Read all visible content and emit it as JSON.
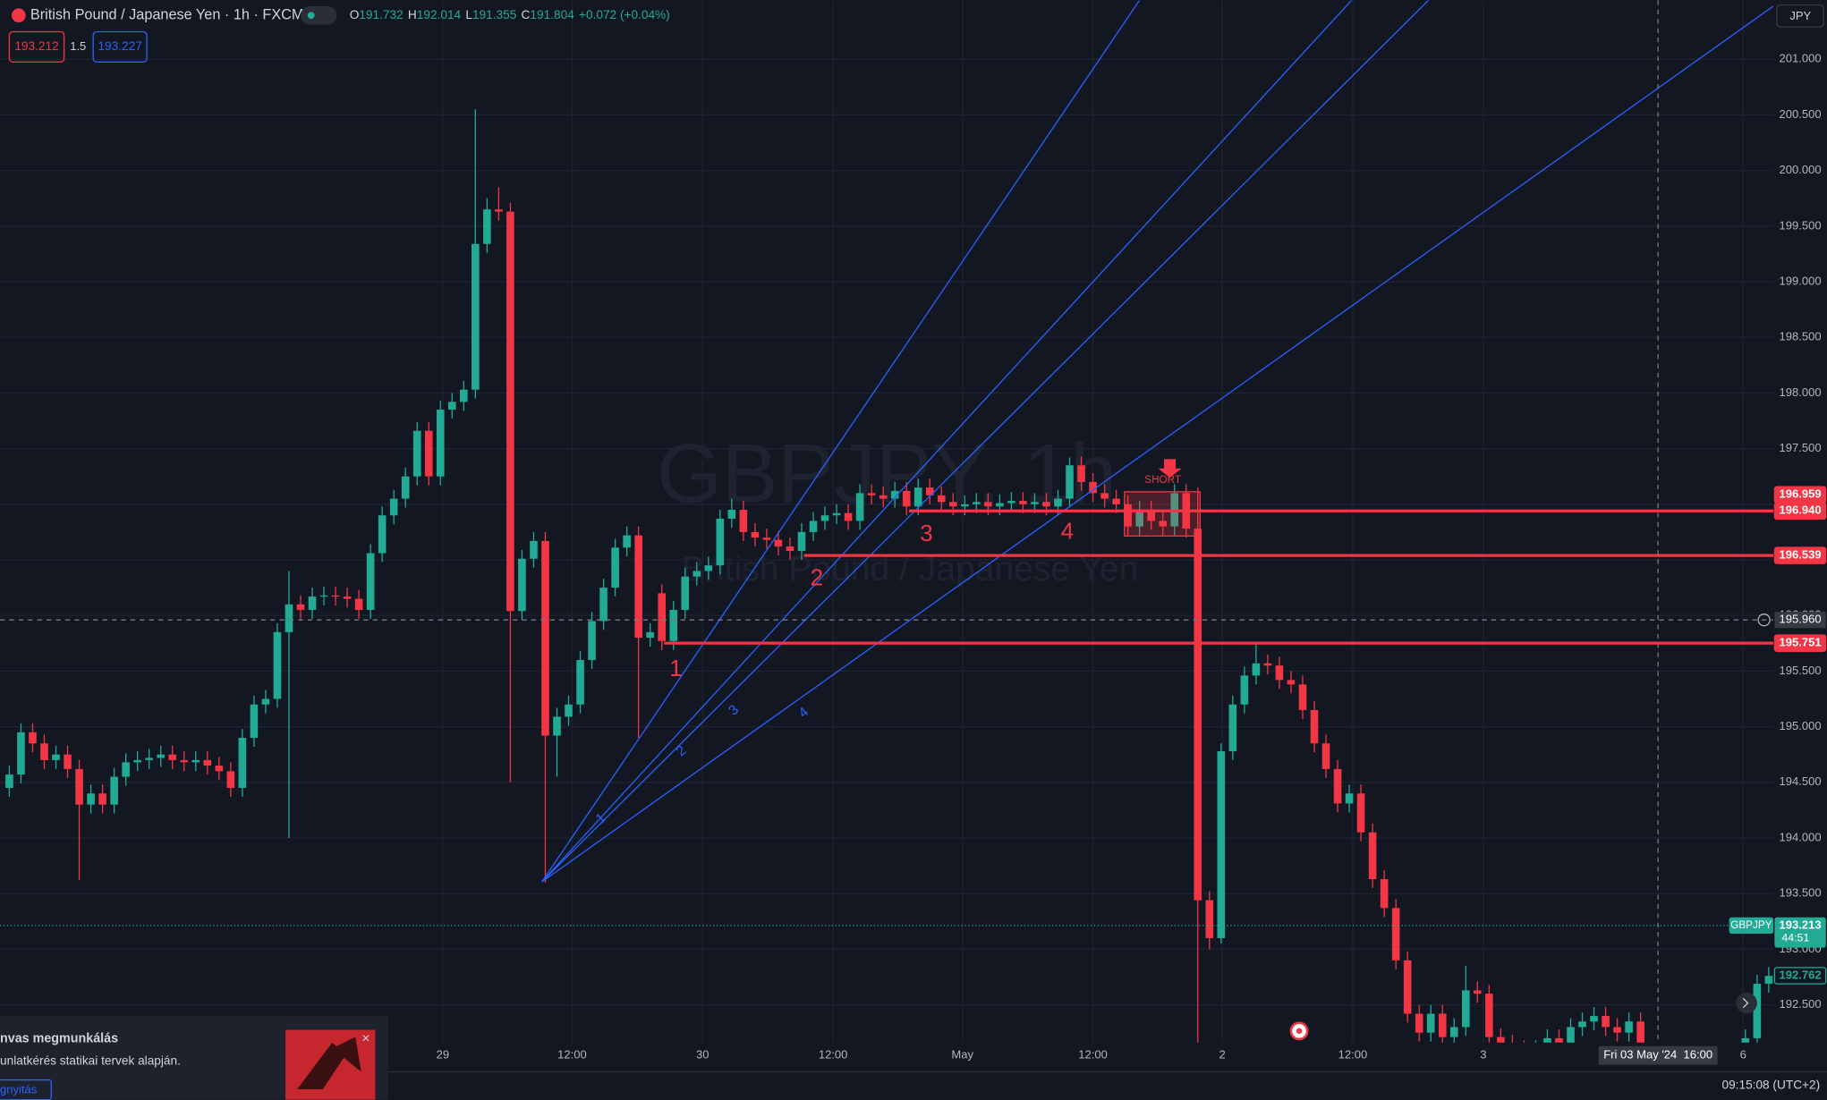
{
  "header": {
    "symbol": "British Pound / Japanese Yen · 1h · FXCM",
    "legend": [
      {
        "key": "O",
        "value": "191.732"
      },
      {
        "key": "H",
        "value": "192.014"
      },
      {
        "key": "L",
        "value": "191.355"
      },
      {
        "key": "C",
        "value": "191.804"
      }
    ],
    "change": "+0.072 (+0.04%)"
  },
  "trade_panel": {
    "sell": "193.212",
    "spread": "1.5",
    "buy": "193.227"
  },
  "currency": "JPY",
  "chart_data": {
    "type": "candlestick",
    "title": "GBPJPY, 1h",
    "subtitle": "British Pound / Japanese Yen",
    "up_color": "#22ab94",
    "down_color": "#f23645",
    "candles": {
      "open": [
        194.45,
        194.57,
        194.95,
        194.85,
        194.7,
        194.75,
        194.62,
        194.3,
        194.4,
        194.3,
        194.55,
        194.68,
        194.7,
        194.72,
        194.75,
        194.7,
        194.68,
        194.7,
        194.65,
        194.6,
        194.45,
        194.9,
        195.2,
        195.25,
        195.85,
        196.1,
        196.05,
        196.17,
        196.18,
        196.17,
        196.15,
        196.05,
        196.56,
        196.9,
        197.05,
        197.25,
        197.66,
        197.25,
        197.85,
        197.92,
        198.03,
        199.34,
        199.65,
        199.63,
        196.04,
        196.51,
        196.67,
        194.92,
        195.09,
        195.2,
        195.6,
        195.95,
        196.25,
        196.61,
        196.72,
        195.8,
        196.2,
        195.77,
        196.05,
        196.35,
        196.4,
        196.45,
        196.87,
        196.95,
        196.75,
        196.7,
        196.68,
        196.62,
        196.58,
        196.75,
        196.85,
        196.9,
        196.92,
        196.85,
        197.1,
        197.08,
        197.05,
        197.12,
        196.98,
        197.15,
        197.08,
        197.02,
        196.98,
        197.0,
        197.02,
        196.98,
        197.01,
        197.03,
        197.0,
        197.02,
        196.98,
        197.05,
        197.35,
        197.2,
        197.1,
        197.05,
        197.0,
        196.8,
        196.95,
        196.85,
        196.8,
        197.1,
        196.78,
        193.44,
        193.1,
        194.78,
        195.2,
        195.46,
        195.57,
        195.55,
        195.42,
        195.38,
        195.15,
        194.85,
        194.62,
        194.31,
        194.4,
        194.05,
        193.63,
        193.37,
        192.9,
        192.42,
        192.25,
        192.42,
        192.21,
        192.3,
        192.63,
        192.6,
        192.21,
        192.15,
        192.1,
        192.05,
        192.1,
        192.2,
        192.15,
        192.3,
        192.35,
        192.4,
        192.3,
        192.25,
        192.35,
        null,
        null,
        null,
        null,
        null,
        null,
        null,
        null,
        192.1,
        192.2,
        192.69
      ],
      "high": [
        194.65,
        195.03,
        195.03,
        194.93,
        194.83,
        194.83,
        194.7,
        194.48,
        194.48,
        194.63,
        194.76,
        194.78,
        194.8,
        194.83,
        194.83,
        194.78,
        194.78,
        194.78,
        194.73,
        194.68,
        194.98,
        195.28,
        195.33,
        195.93,
        196.4,
        196.18,
        196.25,
        196.26,
        196.26,
        196.25,
        196.23,
        196.64,
        196.98,
        197.13,
        197.33,
        197.74,
        197.74,
        197.93,
        198.0,
        198.11,
        200.55,
        199.75,
        199.85,
        199.71,
        196.59,
        196.75,
        196.75,
        195.17,
        195.28,
        195.68,
        196.03,
        196.33,
        196.69,
        196.8,
        196.8,
        195.93,
        196.28,
        196.13,
        196.43,
        196.48,
        196.53,
        196.95,
        197.05,
        197.03,
        196.83,
        196.78,
        196.76,
        196.7,
        196.83,
        196.93,
        196.98,
        197.0,
        197.0,
        197.18,
        197.18,
        197.16,
        197.2,
        197.2,
        197.23,
        197.23,
        197.16,
        197.1,
        197.08,
        197.1,
        197.1,
        197.09,
        197.11,
        197.11,
        197.1,
        197.1,
        197.13,
        197.42,
        197.43,
        197.28,
        197.18,
        197.13,
        197.08,
        197.03,
        197.03,
        196.93,
        197.18,
        197.18,
        197.15,
        193.52,
        194.85,
        195.28,
        195.54,
        195.75,
        195.65,
        195.63,
        195.5,
        195.46,
        195.23,
        194.93,
        194.7,
        194.48,
        194.48,
        194.13,
        193.71,
        193.45,
        192.98,
        192.5,
        192.5,
        192.5,
        192.38,
        192.85,
        192.71,
        192.68,
        192.29,
        192.23,
        192.18,
        192.18,
        192.28,
        192.28,
        192.38,
        192.43,
        192.48,
        192.48,
        192.38,
        192.43,
        192.43,
        null,
        null,
        null,
        null,
        null,
        null,
        null,
        null,
        192.28,
        192.77,
        192.84
      ],
      "low": [
        194.37,
        194.49,
        194.77,
        194.62,
        194.62,
        194.54,
        193.62,
        194.22,
        194.22,
        194.22,
        194.47,
        194.6,
        194.62,
        194.64,
        194.62,
        194.6,
        194.6,
        194.57,
        194.52,
        194.37,
        194.37,
        194.82,
        195.12,
        195.17,
        194.0,
        195.97,
        195.97,
        196.09,
        196.09,
        196.07,
        195.97,
        195.97,
        196.48,
        196.82,
        196.97,
        197.17,
        197.17,
        197.17,
        197.77,
        197.84,
        197.95,
        199.26,
        199.55,
        194.5,
        195.96,
        196.43,
        193.6,
        194.55,
        195.01,
        195.12,
        195.52,
        195.87,
        196.17,
        196.53,
        194.9,
        195.72,
        195.69,
        195.69,
        195.97,
        196.27,
        196.32,
        196.37,
        196.79,
        196.67,
        196.62,
        196.6,
        196.54,
        196.5,
        196.5,
        196.67,
        196.77,
        196.82,
        196.77,
        196.77,
        197.0,
        196.97,
        196.97,
        196.9,
        196.9,
        197.0,
        196.94,
        196.9,
        196.9,
        196.92,
        196.9,
        196.9,
        196.93,
        196.92,
        196.92,
        196.9,
        196.9,
        196.97,
        197.12,
        197.02,
        196.97,
        196.92,
        196.72,
        196.72,
        196.77,
        196.72,
        196.72,
        196.7,
        192.1,
        193.0,
        193.05,
        194.7,
        195.12,
        195.38,
        195.47,
        195.34,
        195.3,
        195.07,
        194.77,
        194.54,
        194.23,
        194.23,
        193.97,
        193.55,
        193.29,
        192.82,
        192.34,
        192.17,
        192.17,
        192.13,
        192.13,
        192.22,
        192.52,
        192.13,
        192.07,
        192.02,
        191.97,
        191.97,
        192.02,
        192.07,
        192.07,
        192.22,
        192.27,
        192.22,
        192.17,
        192.17,
        192.02,
        null,
        null,
        null,
        null,
        null,
        null,
        null,
        null,
        192.02,
        192.12,
        192.61
      ],
      "close": [
        194.57,
        194.95,
        194.85,
        194.7,
        194.75,
        194.62,
        194.3,
        194.4,
        194.3,
        194.55,
        194.68,
        194.7,
        194.72,
        194.75,
        194.7,
        194.68,
        194.7,
        194.65,
        194.6,
        194.45,
        194.9,
        195.2,
        195.25,
        195.85,
        196.1,
        196.05,
        196.17,
        196.18,
        196.17,
        196.15,
        196.05,
        196.56,
        196.9,
        197.05,
        197.25,
        197.66,
        197.25,
        197.85,
        197.92,
        198.03,
        199.34,
        199.65,
        199.63,
        196.04,
        196.51,
        196.67,
        194.92,
        195.09,
        195.2,
        195.6,
        195.95,
        196.25,
        196.61,
        196.72,
        195.8,
        195.85,
        195.77,
        196.05,
        196.35,
        196.4,
        196.45,
        196.87,
        196.95,
        196.75,
        196.7,
        196.68,
        196.62,
        196.58,
        196.75,
        196.85,
        196.9,
        196.92,
        196.85,
        197.1,
        197.08,
        197.05,
        197.12,
        196.98,
        197.15,
        197.08,
        197.02,
        196.98,
        197.0,
        197.02,
        196.98,
        197.01,
        197.03,
        197.0,
        197.02,
        196.98,
        197.05,
        197.35,
        197.2,
        197.1,
        197.05,
        197.0,
        196.8,
        196.95,
        196.85,
        196.8,
        197.1,
        196.78,
        193.44,
        193.1,
        194.78,
        195.2,
        195.46,
        195.57,
        195.55,
        195.42,
        195.38,
        195.15,
        194.85,
        194.62,
        194.31,
        194.4,
        194.05,
        193.63,
        193.37,
        192.9,
        192.42,
        192.25,
        192.42,
        192.21,
        192.3,
        192.63,
        192.6,
        192.21,
        192.15,
        192.1,
        192.05,
        192.1,
        192.2,
        192.15,
        192.3,
        192.35,
        192.4,
        192.3,
        192.25,
        192.35,
        192.1,
        null,
        null,
        null,
        null,
        null,
        null,
        null,
        null,
        192.2,
        192.69,
        192.76
      ]
    },
    "ylim": [
      192.16,
      201.53
    ],
    "yticks": [
      {
        "value": 192.5,
        "label": "192.500"
      },
      {
        "value": 193,
        "label": "193.000"
      },
      {
        "value": 193.5,
        "label": "193.500"
      },
      {
        "value": 194,
        "label": "194.000"
      },
      {
        "value": 194.5,
        "label": "194.500"
      },
      {
        "value": 195,
        "label": "195.000"
      },
      {
        "value": 195.5,
        "label": "195.500"
      },
      {
        "value": 196,
        "label": "196.000"
      },
      {
        "value": 196.5,
        "label": "196.500"
      },
      {
        "value": 197,
        "label": "197.000"
      },
      {
        "value": 197.5,
        "label": "197.500"
      },
      {
        "value": 198,
        "label": "198.000"
      },
      {
        "value": 198.5,
        "label": "198.500"
      },
      {
        "value": 199,
        "label": "199.000"
      },
      {
        "value": 199.5,
        "label": "199.500"
      },
      {
        "value": 200,
        "label": "200.000"
      },
      {
        "value": 200.5,
        "label": "200.500"
      },
      {
        "value": 201,
        "label": "201.000"
      }
    ],
    "xticks": [
      {
        "value": 37.2,
        "label": "29"
      },
      {
        "value": 48.3,
        "label": "12:00"
      },
      {
        "value": 59.5,
        "label": "30"
      },
      {
        "value": 70.7,
        "label": "12:00"
      },
      {
        "value": 81.8,
        "label": "May"
      },
      {
        "value": 93,
        "label": "12:00"
      },
      {
        "value": 104.1,
        "label": "2"
      },
      {
        "value": 115.3,
        "label": "12:00"
      },
      {
        "value": 126.5,
        "label": "3"
      },
      {
        "value": 148.8,
        "label": "6"
      }
    ],
    "grid": true,
    "price_lines": [
      {
        "value": 196.94,
        "label": "196.940",
        "color": "#f23645"
      },
      {
        "value": 196.539,
        "label": "196.539",
        "color": "#f23645"
      },
      {
        "value": 195.751,
        "label": "195.751",
        "color": "#f23645"
      }
    ],
    "price_labels": [
      {
        "value": 196.959,
        "label": "196.959",
        "color": "#f23645"
      }
    ],
    "crosshair": {
      "price": {
        "value": 195.96,
        "label": "195.960"
      },
      "time": "Fri 03 May '24  16:00"
    },
    "last_price": {
      "value": 193.213,
      "label": "193.213",
      "symbol": "GBPJPY",
      "countdown": "44:51",
      "color": "#22ab94"
    },
    "prev_close": {
      "value": 192.762,
      "label": "192.762",
      "color": "#22ab94"
    },
    "annotations": [
      {
        "text": "1",
        "color": "#f23645"
      },
      {
        "text": "2",
        "color": "#f23645"
      },
      {
        "text": "3",
        "color": "#f23645"
      },
      {
        "text": "4",
        "color": "#f23645"
      },
      {
        "text": "1",
        "color": "#2962ff"
      },
      {
        "text": "2",
        "color": "#2962ff"
      },
      {
        "text": "3",
        "color": "#2962ff"
      },
      {
        "text": "4",
        "color": "#2962ff"
      },
      {
        "text": "SHORT",
        "color": "#f23645"
      }
    ]
  },
  "ad": {
    "title": "nvas megmunkálás",
    "text": "unlatkérés statikai tervek alapján.",
    "button": "gnyitás"
  },
  "clock": "09:15:08 (UTC+2)"
}
